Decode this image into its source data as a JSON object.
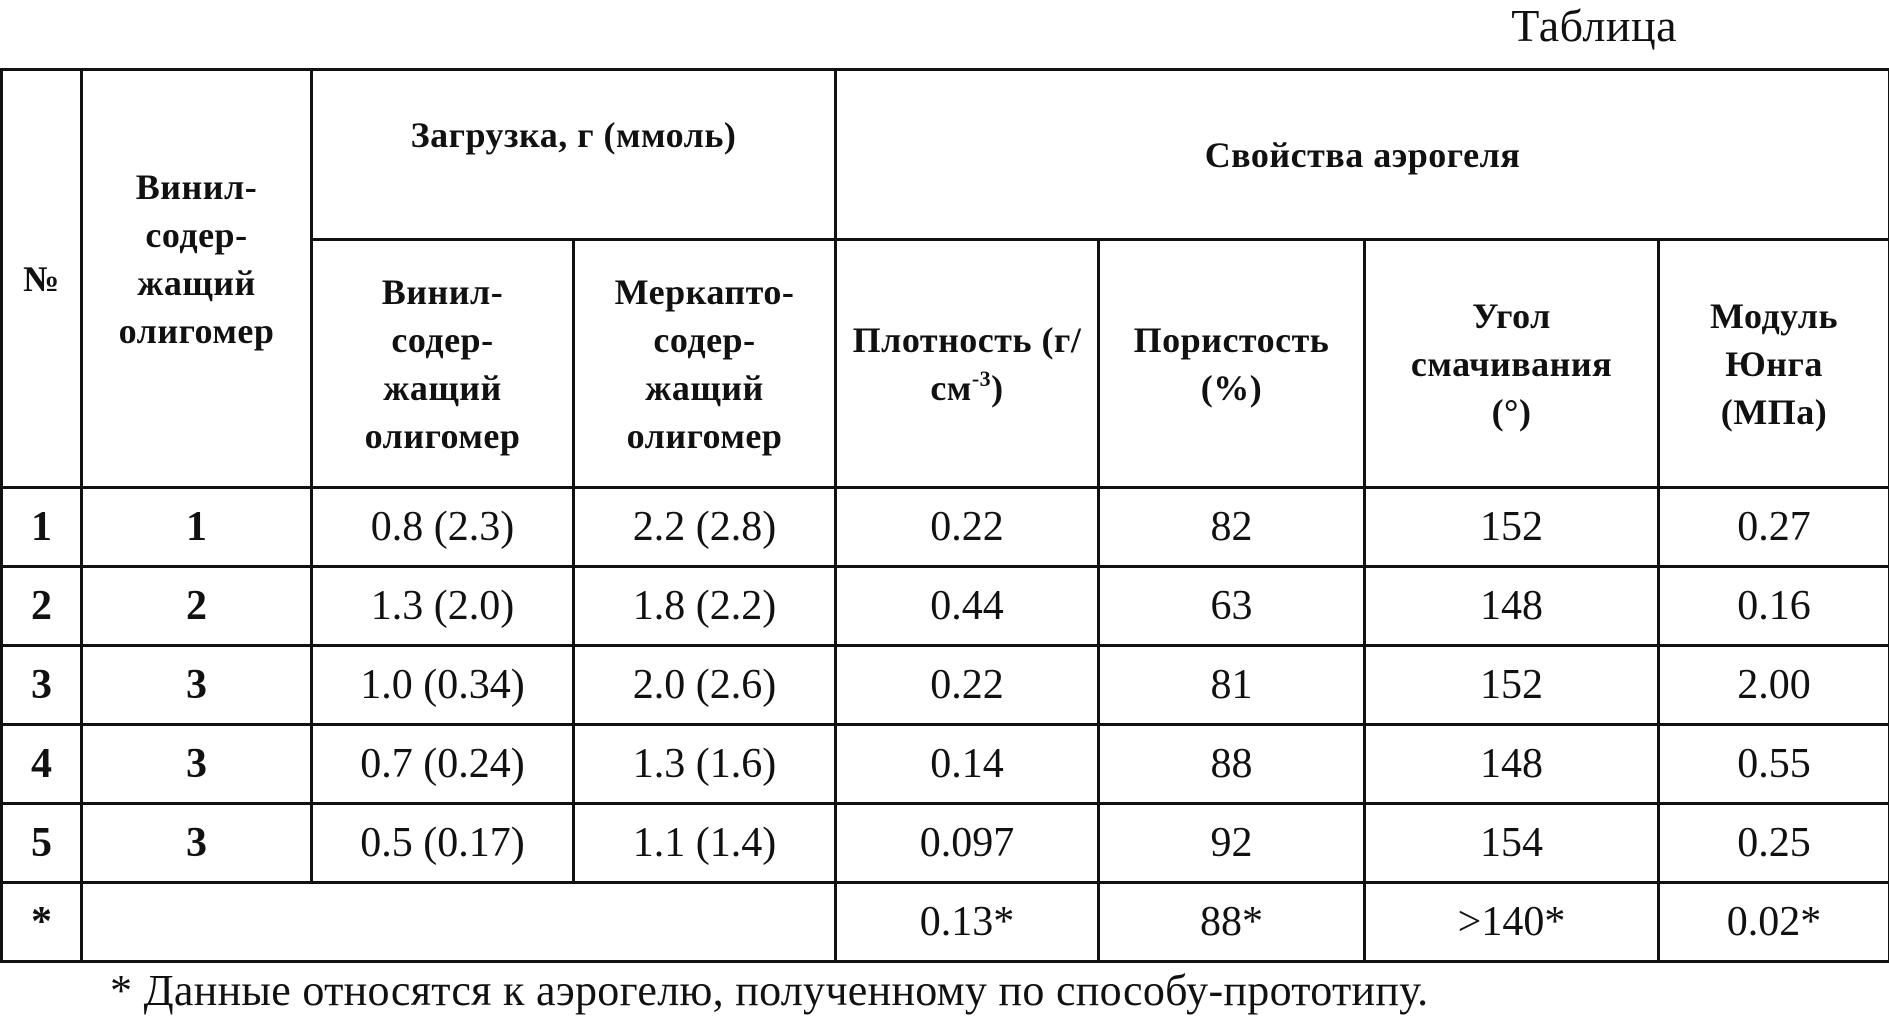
{
  "caption": "Таблица",
  "headers": {
    "no": "№",
    "oligomer": "Винил-содер-жащий олигомер",
    "loading_group": "Загрузка, г (ммоль)",
    "properties_group": "Свойства аэрогеля",
    "loading_vinyl": "Винил-содер-жащий олигомер",
    "loading_mercapto": "Меркапто-содер-жащий олигомер",
    "density": "Плотность (г/см",
    "density_exp": "-3",
    "density_close": ")",
    "porosity": "Пористость (%)",
    "angle": "Угол смачивания (°)",
    "modulus": "Модуль Юнга (МПа)"
  },
  "rows": [
    {
      "no": "1",
      "oligomer": "1",
      "vinyl": "0.8 (2.3)",
      "mercapto": "2.2 (2.8)",
      "density": "0.22",
      "porosity": "82",
      "angle": "152",
      "modulus": "0.27"
    },
    {
      "no": "2",
      "oligomer": "2",
      "vinyl": "1.3 (2.0)",
      "mercapto": "1.8 (2.2)",
      "density": "0.44",
      "porosity": "63",
      "angle": "148",
      "modulus": "0.16"
    },
    {
      "no": "3",
      "oligomer": "3",
      "vinyl": "1.0 (0.34)",
      "mercapto": "2.0 (2.6)",
      "density": "0.22",
      "porosity": "81",
      "angle": "152",
      "modulus": "2.00"
    },
    {
      "no": "4",
      "oligomer": "3",
      "vinyl": "0.7 (0.24)",
      "mercapto": "1.3 (1.6)",
      "density": "0.14",
      "porosity": "88",
      "angle": "148",
      "modulus": "0.55"
    },
    {
      "no": "5",
      "oligomer": "3",
      "vinyl": "0.5 (0.17)",
      "mercapto": "1.1 (1.4)",
      "density": "0.097",
      "porosity": "92",
      "angle": "154",
      "modulus": "0.25"
    }
  ],
  "prototype_row": {
    "no": "*",
    "density": "0.13*",
    "porosity": "88*",
    "angle": ">140*",
    "modulus": "0.02*"
  },
  "footnote": "* Данные относятся к аэрогелю, полученному по способу-прототипу."
}
